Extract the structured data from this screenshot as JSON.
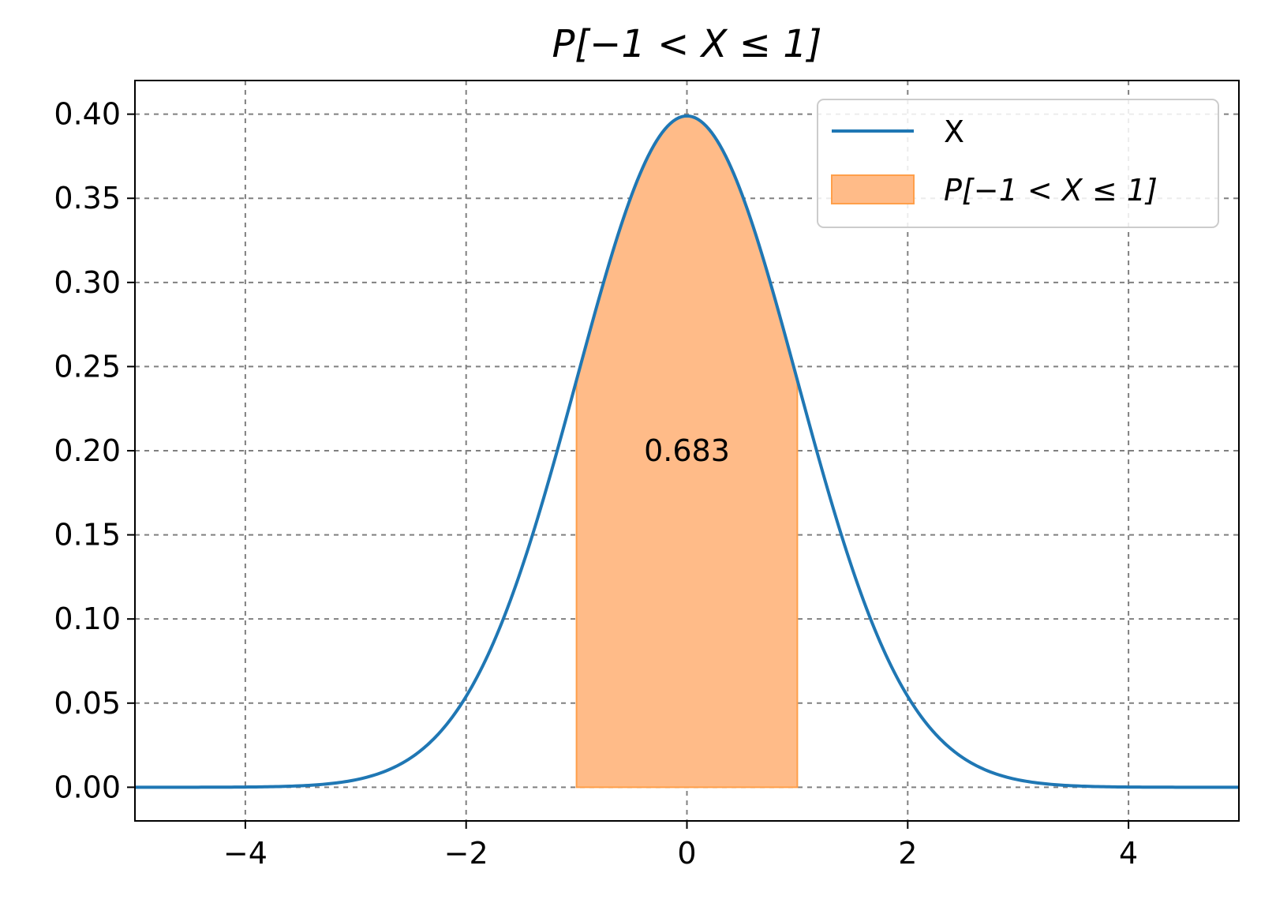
{
  "chart_data": {
    "type": "area",
    "title": "P[−1 < X ≤ 1]",
    "xlabel": "",
    "ylabel": "",
    "xlim": [
      -5,
      5
    ],
    "ylim": [
      -0.02,
      0.42
    ],
    "grid": true,
    "legend_placement": "top-right",
    "x_ticks": [
      -4,
      -2,
      0,
      2,
      4
    ],
    "x_tick_labels": [
      "−4",
      "−2",
      "0",
      "2",
      "4"
    ],
    "y_ticks": [
      0.0,
      0.05,
      0.1,
      0.15,
      0.2,
      0.25,
      0.3,
      0.35,
      0.4
    ],
    "y_tick_labels": [
      "0.00",
      "0.05",
      "0.10",
      "0.15",
      "0.20",
      "0.25",
      "0.30",
      "0.35",
      "0.40"
    ],
    "series": [
      {
        "name": "X",
        "kind": "line",
        "color": "#1f77b4",
        "x": [
          -5.0,
          -4.5,
          -4.0,
          -3.5,
          -3.0,
          -2.75,
          -2.5,
          -2.25,
          -2.0,
          -1.75,
          -1.5,
          -1.25,
          -1.0,
          -0.75,
          -0.5,
          -0.25,
          0.0,
          0.25,
          0.5,
          0.75,
          1.0,
          1.25,
          1.5,
          1.75,
          2.0,
          2.25,
          2.5,
          2.75,
          3.0,
          3.5,
          4.0,
          4.5,
          5.0
        ],
        "y": [
          0.0,
          0.0,
          0.0001,
          0.0009,
          0.0044,
          0.0091,
          0.0175,
          0.0317,
          0.054,
          0.0863,
          0.1295,
          0.1826,
          0.242,
          0.3011,
          0.3521,
          0.3867,
          0.3989,
          0.3867,
          0.3521,
          0.3011,
          0.242,
          0.1826,
          0.1295,
          0.0863,
          0.054,
          0.0317,
          0.0175,
          0.0091,
          0.0044,
          0.0009,
          0.0001,
          0.0,
          0.0
        ]
      },
      {
        "name": "P[−1 < X ≤ 1]",
        "kind": "fill",
        "color": "#ffbb88",
        "edge_color": "#ff9f4a",
        "x_range": [
          -1,
          1
        ]
      }
    ],
    "annotations": [
      {
        "text": "0.683",
        "x": 0,
        "y": 0.2
      }
    ]
  }
}
